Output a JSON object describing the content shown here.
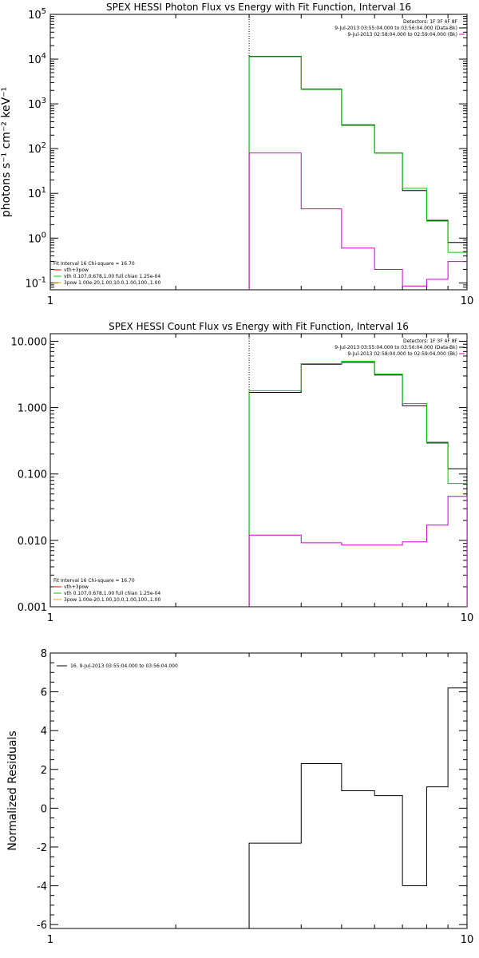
{
  "chart_data": [
    {
      "type": "line",
      "title": "SPEX HESSI Photon Flux vs Energy with Fit Function, Interval 16",
      "ylabel": "photons s⁻¹ cm⁻² keV⁻¹",
      "xlabel": "",
      "x_scale": "log",
      "y_scale": "log",
      "xlim": [
        1,
        10
      ],
      "ylim": [
        0.07,
        100000
      ],
      "x_ticks": [
        {
          "v": 1,
          "label": "1"
        },
        {
          "v": 10,
          "label": "10"
        }
      ],
      "y_ticks": [
        {
          "v": 0.1,
          "base": "10",
          "exp": "-1"
        },
        {
          "v": 1,
          "base": "10",
          "exp": "0"
        },
        {
          "v": 10,
          "base": "10",
          "exp": "1"
        },
        {
          "v": 100,
          "base": "10",
          "exp": "2"
        },
        {
          "v": 1000,
          "base": "10",
          "exp": "3"
        },
        {
          "v": 10000,
          "base": "10",
          "exp": "4"
        },
        {
          "v": 100000,
          "base": "10",
          "exp": "5"
        }
      ],
      "vline_x": 3,
      "info_lines": [
        "Detectors: 1F 3F 4F 8F",
        "9-Jul-2013 03:55:04.000 to 03:56:04.000 (Data-Bk)",
        "9-Jul-2013 02:58:04.000 to 02:59:04.000 (Bk)"
      ],
      "info_colors": [
        "#000000",
        "#cc00cc"
      ],
      "legend_lines": [
        "Fit Interval 16    Chi-square = 16.70",
        "vth+3pow",
        "vth 0.107,0.678,1.00  full chian 1.25e-04",
        "3pow 1.00e-20,1.00,10.0,1.00,100.,1.00"
      ],
      "legend_colors": [
        "#ff0000",
        "#00cc00",
        "#e8a000"
      ],
      "edges": [
        3,
        4,
        5,
        6,
        7,
        8,
        9,
        10
      ],
      "series": [
        {
          "color": "#000000",
          "values": [
            11500,
            2150,
            340,
            80,
            11.5,
            2.5,
            0.8
          ]
        },
        {
          "color": "#00cc00",
          "values": [
            11300,
            2100,
            330,
            79,
            13,
            2.4,
            0.48
          ]
        },
        {
          "color": "#cc00cc",
          "values": [
            80,
            4.5,
            0.6,
            0.2,
            0.085,
            0.12,
            0.3
          ]
        }
      ]
    },
    {
      "type": "line",
      "title": "SPEX HESSI Count Flux vs Energy with Fit Function, Interval 16",
      "ylabel": "",
      "xlabel": "",
      "x_scale": "log",
      "y_scale": "log",
      "xlim": [
        1,
        10
      ],
      "ylim": [
        0.001,
        13
      ],
      "x_ticks": [
        {
          "v": 1,
          "label": "1"
        },
        {
          "v": 10,
          "label": "10"
        }
      ],
      "y_ticks": [
        {
          "v": 0.001,
          "label": "0.001"
        },
        {
          "v": 0.01,
          "label": "0.010"
        },
        {
          "v": 0.1,
          "label": "0.100"
        },
        {
          "v": 1,
          "label": "1.000"
        },
        {
          "v": 10,
          "label": "10.000"
        }
      ],
      "vline_x": 3,
      "info_lines": [
        "Detectors: 1F 3F 4F 8F",
        "9-Jul-2013 03:55:04.000 to 03:56:04.000 (Data-Bk)",
        "9-Jul-2013 02:58:04.000 to 02:59:04.000 (Bk)"
      ],
      "info_colors": [
        "#000000",
        "#cc00cc"
      ],
      "legend_lines": [
        "Fit Interval 16    Chi-square = 16.70",
        "vth+3pow",
        "vth 0.107,0.678,1.00  full chian 1.25e-04",
        "3pow 1.00e-20,1.00,10.0,1.00,100.,1.00"
      ],
      "legend_colors": [
        "#ff0000",
        "#00cc00",
        "#e8a000"
      ],
      "edges": [
        3,
        4,
        5,
        6,
        7,
        8,
        9,
        10
      ],
      "series": [
        {
          "color": "#000000",
          "values": [
            1.7,
            4.5,
            4.8,
            3.1,
            1.07,
            0.3,
            0.12
          ]
        },
        {
          "color": "#00cc00",
          "values": [
            1.8,
            4.6,
            5.0,
            3.2,
            1.15,
            0.29,
            0.072
          ]
        },
        {
          "color": "#cc00cc",
          "values": [
            0.012,
            0.0092,
            0.0085,
            0.0085,
            0.0095,
            0.017,
            0.046
          ]
        }
      ],
      "drop_to_floor": [
        2
      ]
    },
    {
      "type": "line",
      "title": "",
      "ylabel": "Normalized Residuals",
      "xlabel": "",
      "x_scale": "log",
      "y_scale": "linear",
      "xlim": [
        1,
        10
      ],
      "ylim": [
        -6.2,
        8
      ],
      "x_ticks": [
        {
          "v": 1,
          "label": "1"
        },
        {
          "v": 10,
          "label": "10"
        }
      ],
      "y_ticks": [
        {
          "v": -6,
          "label": "-6"
        },
        {
          "v": -4,
          "label": "-4"
        },
        {
          "v": -2,
          "label": "-2"
        },
        {
          "v": 0,
          "label": "0"
        },
        {
          "v": 2,
          "label": "2"
        },
        {
          "v": 4,
          "label": "4"
        },
        {
          "v": 6,
          "label": "6"
        },
        {
          "v": 8,
          "label": "8"
        }
      ],
      "legend_lines": [
        "16.  9-Jul-2013 03:55:04.000 to 03:56:04.000"
      ],
      "legend_colors": [
        "#000000"
      ],
      "edges": [
        3,
        4,
        5,
        6,
        7,
        8,
        9,
        10
      ],
      "series": [
        {
          "color": "#000000",
          "values": [
            -1.8,
            2.3,
            0.9,
            0.65,
            -4.0,
            1.1,
            6.2
          ]
        }
      ]
    }
  ]
}
